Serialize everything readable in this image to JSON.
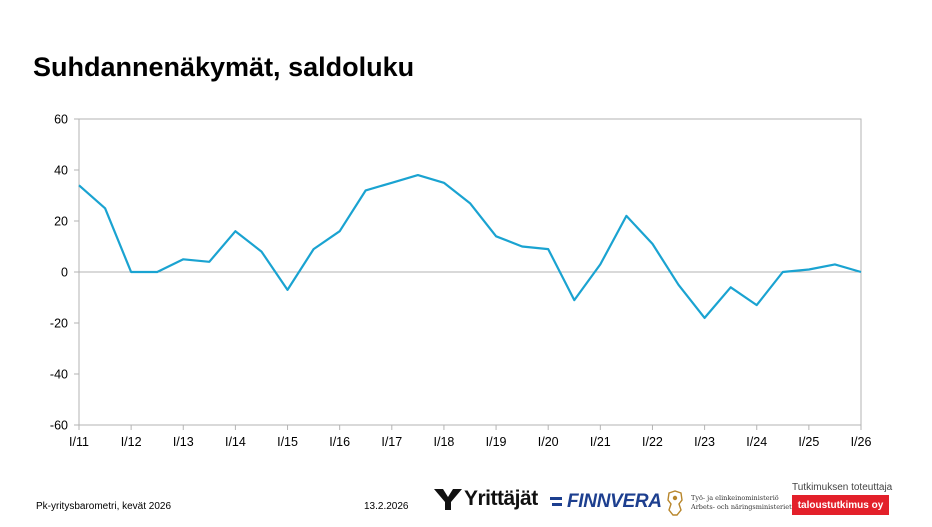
{
  "slide": {
    "title": "Suhdannenäkymät, saldoluku",
    "footer_left": "Pk-yritysbarometri, kevät 2026",
    "footer_date": "13.2.2026",
    "logos": {
      "yrittajat": "Yrittäjät",
      "finnvera": "FINNVERA",
      "tem_line1": "Työ- ja elinkeinoministeriö",
      "tem_line2": "Arbets- och näringsministeriet",
      "research_label": "Tutkimuksen toteuttaja",
      "research_company": "taloustutkimus oy"
    }
  },
  "colors": {
    "line": "#1aa3d1",
    "brand_red": "#e3202a",
    "finnvera_blue": "#1d3f8f",
    "grid": "#b3b3b3"
  },
  "chart_data": {
    "type": "line",
    "title": "Suhdannenäkymät, saldoluku",
    "xlabel": "",
    "ylabel": "",
    "ylim": [
      -60,
      60
    ],
    "yticks": [
      60,
      40,
      20,
      0,
      -20,
      -40,
      -60
    ],
    "grid": "zero line only",
    "legend": "none",
    "xticks": [
      "I/11",
      "I/12",
      "I/13",
      "I/14",
      "I/15",
      "I/16",
      "I/17",
      "I/18",
      "I/19",
      "I/20",
      "I/21",
      "I/22",
      "I/23",
      "I/24",
      "I/25",
      "I/26"
    ],
    "series": [
      {
        "values": [
          34,
          25,
          0,
          0,
          5,
          4,
          16,
          8,
          -7,
          9,
          16,
          32,
          35,
          38,
          35,
          27,
          14,
          10,
          9,
          -11,
          3,
          22,
          11,
          -5,
          -18,
          -6,
          -13,
          0,
          1,
          3,
          0
        ]
      }
    ]
  }
}
